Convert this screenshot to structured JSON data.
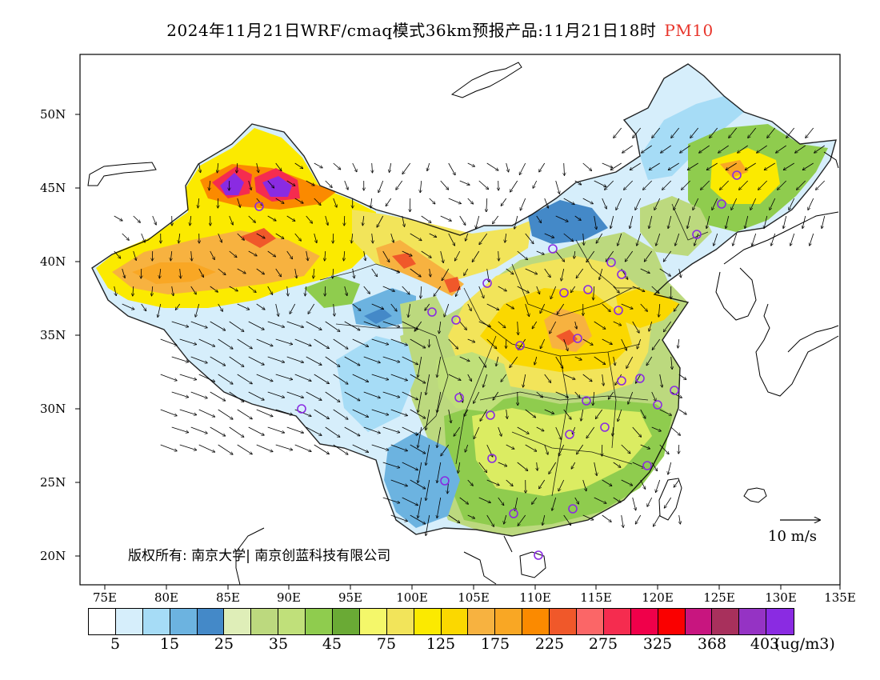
{
  "title": {
    "main": "2024年11月21日WRF/cmaq模式36km预报产品:11月21日18时",
    "pollutant": "PM10"
  },
  "lat_labels": [
    "50N",
    "45N",
    "40N",
    "35N",
    "30N",
    "25N",
    "20N"
  ],
  "lon_labels": [
    "75E",
    "80E",
    "85E",
    "90E",
    "95E",
    "100E",
    "105E",
    "110E",
    "115E",
    "120E",
    "125E",
    "130E",
    "135E"
  ],
  "legend": {
    "colors": [
      "#ffffff",
      "#d6eefb",
      "#a6dcf6",
      "#6cb3e0",
      "#4489c8",
      "#dfeeb8",
      "#bcd97e",
      "#c0e07a",
      "#8fcc4e",
      "#6aaa35",
      "#f4f76a",
      "#f2e45a",
      "#fbea00",
      "#fbd800",
      "#f7b240",
      "#f9a724",
      "#fb8a00",
      "#f0582a",
      "#fb6667",
      "#f52c4f",
      "#f0004a",
      "#fa0000",
      "#c8157f",
      "#a8305c",
      "#9533c4",
      "#8a2be2"
    ],
    "labels": [
      "5",
      "15",
      "25",
      "35",
      "45",
      "75",
      "125",
      "175",
      "225",
      "275",
      "325",
      "368",
      "403"
    ],
    "units": "(ug/m3)"
  },
  "copyright": "版权所有: 南京大学| 南京创蓝科技有限公司",
  "wind_reference": "10 m/s",
  "colors": {
    "pollutant_title": "#e8352b",
    "station_marker": "#8a2be2"
  }
}
